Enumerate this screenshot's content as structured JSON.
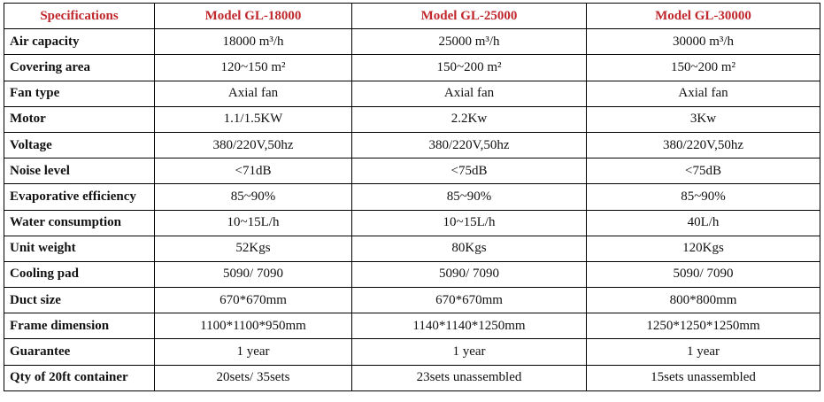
{
  "header": [
    "Specifications",
    "Model GL-18000",
    "Model GL-25000",
    "Model GL-30000"
  ],
  "rows": [
    {
      "label": "Air capacity",
      "values": [
        "18000 m³/h",
        "25000 m³/h",
        "30000 m³/h"
      ]
    },
    {
      "label": "Covering area",
      "values": [
        "120~150 m²",
        "150~200 m²",
        "150~200 m²"
      ]
    },
    {
      "label": "Fan type",
      "values": [
        "Axial fan",
        "Axial fan",
        "Axial fan"
      ]
    },
    {
      "label": "Motor",
      "values": [
        "1.1/1.5KW",
        "2.2Kw",
        "3Kw"
      ]
    },
    {
      "label": "Voltage",
      "values": [
        "380/220V,50hz",
        "380/220V,50hz",
        "380/220V,50hz"
      ]
    },
    {
      "label": "Noise level",
      "values": [
        "<71dB",
        "<75dB",
        "<75dB"
      ]
    },
    {
      "label": "Evaporative efficiency",
      "values": [
        "85~90%",
        "85~90%",
        "85~90%"
      ]
    },
    {
      "label": "Water consumption",
      "values": [
        "10~15L/h",
        "10~15L/h",
        "40L/h"
      ]
    },
    {
      "label": "Unit weight",
      "values": [
        "52Kgs",
        "80Kgs",
        "120Kgs"
      ]
    },
    {
      "label": "Cooling pad",
      "values": [
        "5090/ 7090",
        "5090/ 7090",
        "5090/ 7090"
      ]
    },
    {
      "label": "Duct size",
      "values": [
        "670*670mm",
        "670*670mm",
        "800*800mm"
      ]
    },
    {
      "label": "Frame dimension",
      "values": [
        "1100*1100*950mm",
        "1140*1140*1250mm",
        "1250*1250*1250mm"
      ]
    },
    {
      "label": "Guarantee",
      "values": [
        "1 year",
        "1 year",
        "1 year"
      ]
    },
    {
      "label": "Qty of 20ft container",
      "values": [
        "20sets/ 35sets",
        "23sets unassembled",
        "15sets unassembled"
      ]
    }
  ]
}
